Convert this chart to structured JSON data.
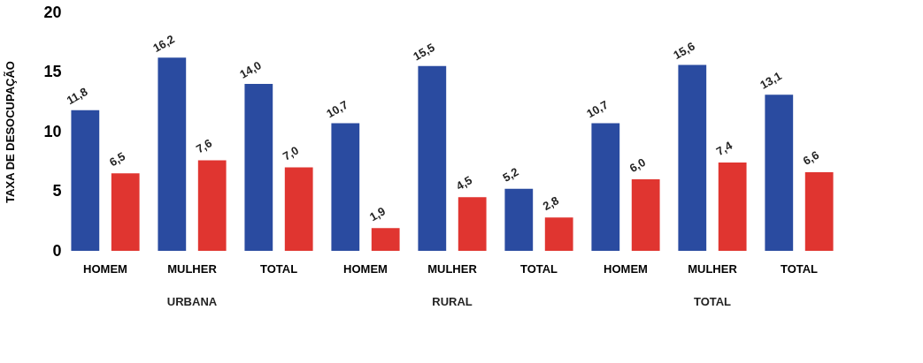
{
  "chart_data": {
    "type": "bar",
    "ylabel": "TAXA DE DESOCUPAÇÃO",
    "categories": [
      "HOMEM",
      "MULHER",
      "TOTAL",
      "HOMEM",
      "MULHER",
      "TOTAL",
      "HOMEM",
      "MULHER",
      "TOTAL"
    ],
    "series": [
      {
        "color": "#2a4ba0",
        "values": [
          11.8,
          16.2,
          14.0,
          10.7,
          15.5,
          5.2,
          10.7,
          15.6,
          13.1
        ],
        "value_labels": [
          "11,8",
          "16,2",
          "14,0",
          "10,7",
          "15,5",
          "5,2",
          "10,7",
          "15,6",
          "13,1"
        ]
      },
      {
        "color": "#e03530",
        "values": [
          6.5,
          7.6,
          7.0,
          1.9,
          4.5,
          2.8,
          6.0,
          7.4,
          6.6
        ],
        "value_labels": [
          "6,5",
          "7,6",
          "7,0",
          "1,9",
          "4,5",
          "2,8",
          "6,0",
          "7,4",
          "6,6"
        ]
      }
    ],
    "annotations": [
      "URBANA",
      "RURAL",
      "TOTAL"
    ],
    "ylim": [
      0,
      20
    ],
    "yticks": [
      0,
      5,
      10,
      15,
      20
    ],
    "grid": false
  }
}
